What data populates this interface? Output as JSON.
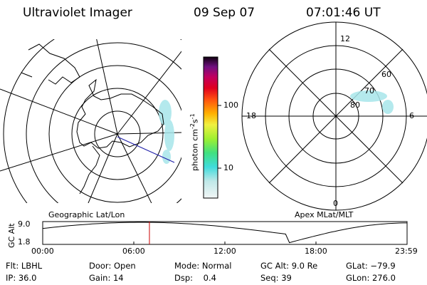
{
  "header": {
    "instrument": "Ultraviolet Imager",
    "date": "09 Sep 07",
    "time": "07:01:46 UT"
  },
  "geo_panel": {
    "label": "Geographic Lat/Lon"
  },
  "apex_panel": {
    "label": "Apex MLat/MLT",
    "mlt_labels": {
      "top": "12",
      "right": "6",
      "bottom": "0",
      "left": "18"
    },
    "lat_labels": [
      "60",
      "70",
      "80"
    ]
  },
  "colorbar": {
    "unit_label": "photon cm",
    "unit_exp1": "-2",
    "unit_mid": "s",
    "unit_exp2": "-1",
    "ticks": [
      "100",
      "10"
    ]
  },
  "altitude_plot": {
    "ylabel": "GC Alt",
    "yticks": [
      "9.0",
      "1.8"
    ],
    "xticks": [
      "00:00",
      "06:00",
      "12:00",
      "18:00",
      "23:59"
    ],
    "current_time_hours": 7.03
  },
  "info": {
    "row1": [
      {
        "k": "Flt:",
        "v": "LBHL"
      },
      {
        "k": "Door:",
        "v": "Open"
      },
      {
        "k": "Mode:",
        "v": "Normal"
      },
      {
        "k": "GC Alt:",
        "v": "9.0 Re"
      },
      {
        "k": "GLat:",
        "v": "−79.9"
      }
    ],
    "row2": [
      {
        "k": "IP:",
        "v": "36.0"
      },
      {
        "k": "Gain:",
        "v": "14"
      },
      {
        "k": "Dsp:",
        "v": "0.4"
      },
      {
        "k": "Seq:",
        "v": "39"
      },
      {
        "k": "GLon:",
        "v": "276.0"
      }
    ]
  },
  "colors": {
    "marker": "#cc0000",
    "track": "#2222aa",
    "aurora": "#a8e6ea"
  }
}
